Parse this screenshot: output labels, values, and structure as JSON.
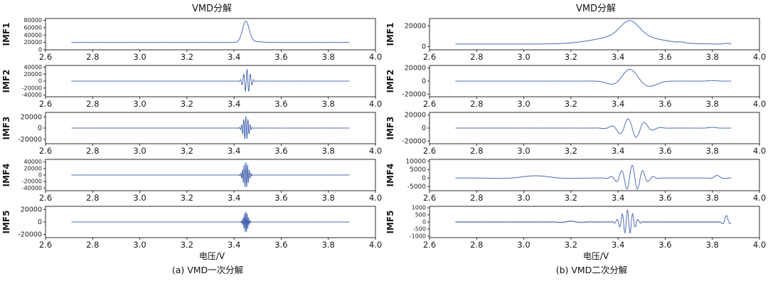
{
  "colors": {
    "line": "#3f5fae",
    "axis": "#2b2b2b",
    "text": "#1a1a1a",
    "background": "#ffffff"
  },
  "chart_data": [
    {
      "id": "a",
      "type": "line",
      "title": "VMD分解",
      "caption": "(a) VMD一次分解",
      "xlabel": "电压/V",
      "xlim": [
        2.6,
        4.0
      ],
      "xticks": [
        2.6,
        2.8,
        3.0,
        3.2,
        3.4,
        3.6,
        3.8,
        4.0
      ],
      "x_range_data": [
        2.71,
        3.89
      ],
      "legend": "none",
      "grid": false,
      "subplots": [
        {
          "label": "IMF1",
          "ylim": [
            0,
            85000
          ],
          "yticks": [
            80000,
            60000,
            40000,
            20000,
            0
          ],
          "description": "flat baseline near 20000 with sharp peak to ~77000 at x=3.45",
          "components": [
            {
              "kind": "const",
              "value": 20000
            },
            {
              "kind": "gauss",
              "center": 3.45,
              "width": 0.02,
              "amp": 57000
            },
            {
              "kind": "gauss",
              "center": 3.49,
              "width": 0.04,
              "amp": 2500
            },
            {
              "kind": "noise",
              "amp": 250
            }
          ]
        },
        {
          "label": "IMF2",
          "ylim": [
            -45000,
            45000
          ],
          "yticks": [
            40000,
            20000,
            0,
            -20000,
            -40000
          ],
          "description": "zero line with narrow oscillatory burst amplitude ~33000 at x=3.45",
          "components": [
            {
              "kind": "gabor",
              "center": 3.455,
              "width": 0.02,
              "amp": 33000,
              "freq": 70
            },
            {
              "kind": "noise",
              "amp": 200
            }
          ]
        },
        {
          "label": "IMF3",
          "ylim": [
            -28000,
            28000
          ],
          "yticks": [
            20000,
            0,
            -20000
          ],
          "description": "zero line with narrow oscillatory burst amplitude ~21000 at x=3.45",
          "components": [
            {
              "kind": "gabor",
              "center": 3.45,
              "width": 0.016,
              "amp": 21000,
              "freq": 110
            },
            {
              "kind": "noise",
              "amp": 150
            }
          ]
        },
        {
          "label": "IMF4",
          "ylim": [
            -48000,
            48000
          ],
          "yticks": [
            40000,
            20000,
            0,
            -20000,
            -40000
          ],
          "description": "zero line with narrow oscillatory burst amplitude ~40000 at x=3.45",
          "components": [
            {
              "kind": "gabor",
              "center": 3.45,
              "width": 0.015,
              "amp": 40000,
              "freq": 140
            },
            {
              "kind": "noise",
              "amp": 180
            }
          ]
        },
        {
          "label": "IMF5",
          "ylim": [
            -25000,
            25000
          ],
          "yticks": [
            20000,
            0,
            -20000
          ],
          "description": "zero line with narrow oscillatory burst amplitude ~17000 at x=3.45",
          "components": [
            {
              "kind": "gabor",
              "center": 3.45,
              "width": 0.012,
              "amp": 17000,
              "freq": 180
            },
            {
              "kind": "noise",
              "amp": 120
            }
          ]
        }
      ]
    },
    {
      "id": "b",
      "type": "line",
      "title": "VMD分解",
      "caption": "(b) VMD二次分解",
      "xlabel": "电压/V",
      "xlim": [
        2.6,
        4.0
      ],
      "xticks": [
        2.6,
        2.8,
        3.0,
        3.2,
        3.4,
        3.6,
        3.8,
        4.0
      ],
      "x_range_data": [
        2.71,
        3.88
      ],
      "legend": "none",
      "grid": false,
      "subplots": [
        {
          "label": "IMF1",
          "ylim": [
            -3000,
            27000
          ],
          "yticks": [
            20000,
            0
          ],
          "description": "baseline ~2500 with broad smooth peak to ~25000 at x=3.45, small wiggles near 3.67 and 3.86",
          "components": [
            {
              "kind": "const",
              "value": 2500
            },
            {
              "kind": "gauss",
              "center": 3.44,
              "width": 0.17,
              "amp": 8500
            },
            {
              "kind": "gauss",
              "center": 3.45,
              "width": 0.055,
              "amp": 14000
            },
            {
              "kind": "gabor",
              "center": 3.67,
              "width": 0.025,
              "amp": 700,
              "freq": 9
            },
            {
              "kind": "gabor",
              "center": 3.86,
              "width": 0.02,
              "amp": 700,
              "freq": 9
            },
            {
              "kind": "noise",
              "amp": 120
            }
          ]
        },
        {
          "label": "IMF2",
          "ylim": [
            -24000,
            24000
          ],
          "yticks": [
            20000,
            0,
            -20000
          ],
          "description": "smooth low-frequency wavelet, peak ~18000 at 3.45 with dips ~-4000 at 3.35 and ~-8000 at 3.55",
          "components": [
            {
              "kind": "gabor",
              "center": 3.45,
              "width": 0.075,
              "amp": 18000,
              "freq": 5
            },
            {
              "kind": "gauss",
              "center": 3.55,
              "width": 0.04,
              "amp": -4000
            },
            {
              "kind": "gabor",
              "center": 3.8,
              "width": 0.03,
              "amp": 900,
              "freq": 6
            },
            {
              "kind": "noise",
              "amp": 120
            }
          ]
        },
        {
          "label": "IMF3",
          "ylim": [
            -24000,
            24000
          ],
          "yticks": [
            20000,
            0,
            -20000
          ],
          "description": "oscillation packet between 3.3 and 3.6, amplitude ~15000, small wiggle near 3.8",
          "components": [
            {
              "kind": "gabor",
              "center": 3.46,
              "width": 0.07,
              "amp": 15000,
              "freq": 14,
              "phase": 1.57
            },
            {
              "kind": "gabor",
              "center": 3.8,
              "width": 0.03,
              "amp": 1200,
              "freq": 8
            },
            {
              "kind": "noise",
              "amp": 120
            }
          ]
        },
        {
          "label": "IMF4",
          "ylim": [
            -7500,
            11000
          ],
          "yticks": [
            10000,
            5000,
            0,
            -5000
          ],
          "description": "gentle slow wave near 3.0, oscillation packet amplitude ~7500 around 3.46, wiggle near 3.82",
          "components": [
            {
              "kind": "gabor",
              "center": 3.05,
              "width": 0.13,
              "amp": 1300,
              "freq": 2.5
            },
            {
              "kind": "gabor",
              "center": 3.46,
              "width": 0.06,
              "amp": 7500,
              "freq": 22
            },
            {
              "kind": "gabor",
              "center": 3.82,
              "width": 0.025,
              "amp": 1500,
              "freq": 12
            },
            {
              "kind": "noise",
              "amp": 80
            }
          ]
        },
        {
          "label": "IMF5",
          "ylim": [
            -1100,
            1100
          ],
          "yticks": [
            1000,
            500,
            0,
            -500,
            -1000
          ],
          "description": "near-zero line with high-frequency burst amplitude ~850 at 3.44 and small burst ~450 near 3.86",
          "components": [
            {
              "kind": "gabor",
              "center": 3.44,
              "width": 0.035,
              "amp": 850,
              "freq": 45
            },
            {
              "kind": "gabor",
              "center": 3.2,
              "width": 0.05,
              "amp": 60,
              "freq": 10
            },
            {
              "kind": "gabor",
              "center": 3.86,
              "width": 0.015,
              "amp": 450,
              "freq": 25
            },
            {
              "kind": "noise",
              "amp": 25
            }
          ]
        }
      ]
    }
  ]
}
